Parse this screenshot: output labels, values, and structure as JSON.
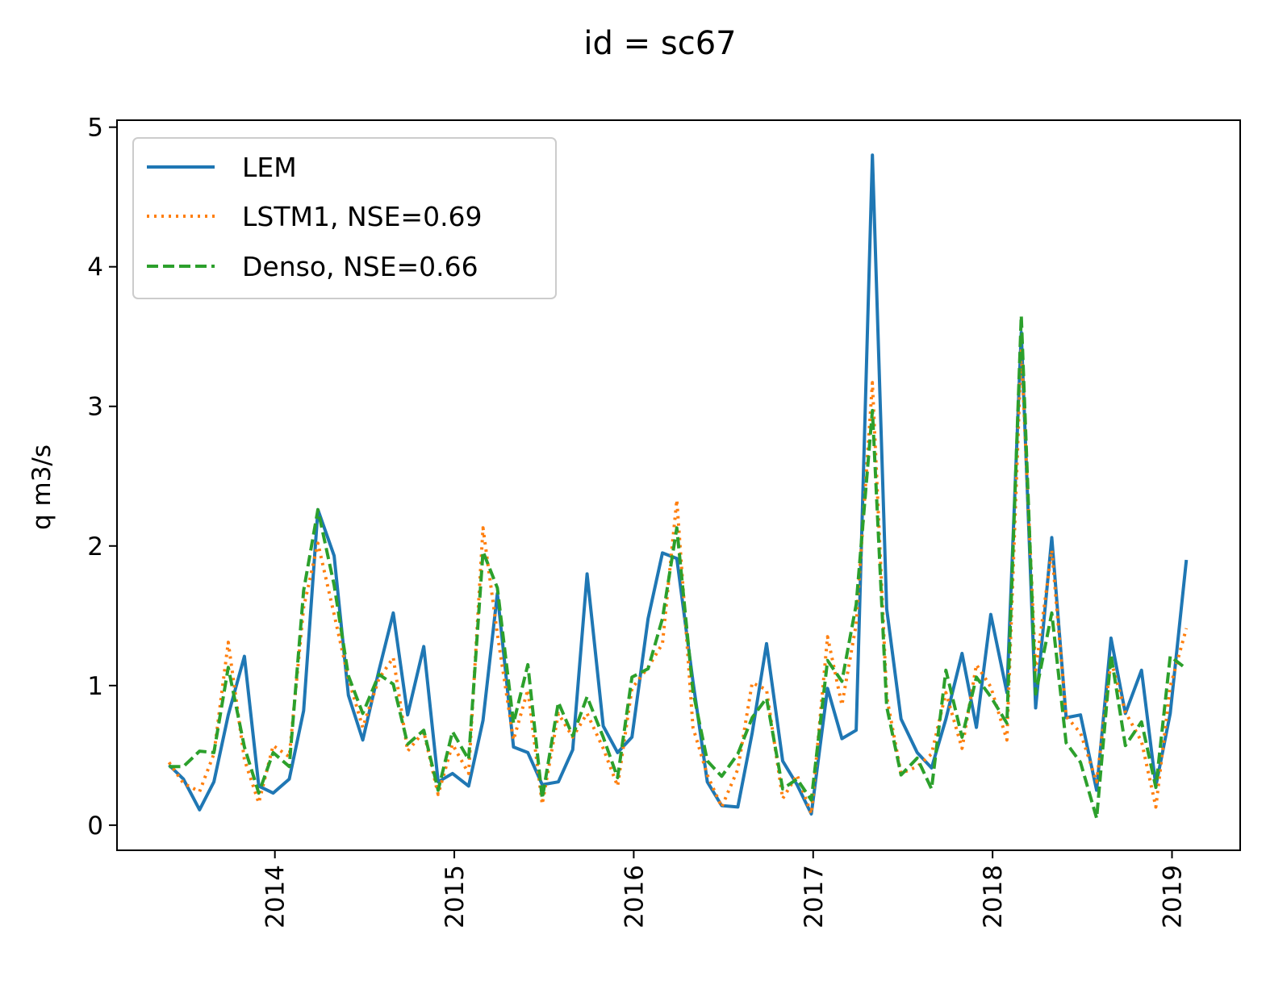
{
  "chart_data": {
    "type": "line",
    "title": "id = sc67",
    "xlabel": "",
    "ylabel": "q m3/s",
    "xlim": [
      2013.12,
      2019.38
    ],
    "ylim": [
      -0.18,
      5.05
    ],
    "x_ticks": [
      {
        "value": 2014,
        "label": "2014"
      },
      {
        "value": 2015,
        "label": "2015"
      },
      {
        "value": 2016,
        "label": "2016"
      },
      {
        "value": 2017,
        "label": "2017"
      },
      {
        "value": 2018,
        "label": "2018"
      },
      {
        "value": 2019,
        "label": "2019"
      }
    ],
    "y_ticks": [
      {
        "value": 0,
        "label": "0"
      },
      {
        "value": 1,
        "label": "1"
      },
      {
        "value": 2,
        "label": "2"
      },
      {
        "value": 3,
        "label": "3"
      },
      {
        "value": 4,
        "label": "4"
      },
      {
        "value": 5,
        "label": "5"
      }
    ],
    "legend_position": "top-left",
    "series": [
      {
        "name": "LEM",
        "color": "#1f77b4",
        "style": "solid",
        "x": [
          2013.41,
          2013.49,
          2013.58,
          2013.66,
          2013.74,
          2013.83,
          2013.91,
          2013.99,
          2014.08,
          2014.16,
          2014.24,
          2014.33,
          2014.41,
          2014.49,
          2014.58,
          2014.66,
          2014.74,
          2014.83,
          2014.91,
          2014.99,
          2015.08,
          2015.16,
          2015.24,
          2015.33,
          2015.41,
          2015.49,
          2015.58,
          2015.66,
          2015.74,
          2015.83,
          2015.91,
          2015.99,
          2016.08,
          2016.16,
          2016.24,
          2016.33,
          2016.41,
          2016.49,
          2016.58,
          2016.66,
          2016.74,
          2016.83,
          2016.91,
          2016.99,
          2017.08,
          2017.16,
          2017.24,
          2017.33,
          2017.41,
          2017.49,
          2017.58,
          2017.66,
          2017.74,
          2017.83,
          2017.91,
          2017.99,
          2018.08,
          2018.16,
          2018.24,
          2018.33,
          2018.41,
          2018.49,
          2018.58,
          2018.66,
          2018.74,
          2018.83,
          2018.91,
          2018.99,
          2019.08
        ],
        "y": [
          0.43,
          0.33,
          0.11,
          0.31,
          0.79,
          1.21,
          0.28,
          0.23,
          0.33,
          0.82,
          2.26,
          1.93,
          0.93,
          0.61,
          1.11,
          1.52,
          0.79,
          1.28,
          0.31,
          0.37,
          0.28,
          0.75,
          1.66,
          0.56,
          0.52,
          0.29,
          0.31,
          0.54,
          1.8,
          0.71,
          0.52,
          0.63,
          1.48,
          1.95,
          1.91,
          1.03,
          0.31,
          0.14,
          0.13,
          0.66,
          1.3,
          0.46,
          0.29,
          0.08,
          0.98,
          0.62,
          0.68,
          4.8,
          1.55,
          0.76,
          0.52,
          0.41,
          0.76,
          1.23,
          0.7,
          1.51,
          0.95,
          3.53,
          0.84,
          2.06,
          0.77,
          0.79,
          0.25,
          1.34,
          0.8,
          1.11,
          0.28,
          0.8,
          1.9
        ]
      },
      {
        "name": "LSTM1, NSE=0.69",
        "color": "#ff7f0e",
        "style": "dotted",
        "x": [
          2013.41,
          2013.49,
          2013.58,
          2013.66,
          2013.74,
          2013.83,
          2013.91,
          2013.99,
          2014.08,
          2014.16,
          2014.24,
          2014.33,
          2014.41,
          2014.49,
          2014.58,
          2014.66,
          2014.74,
          2014.83,
          2014.91,
          2014.99,
          2015.08,
          2015.16,
          2015.24,
          2015.33,
          2015.41,
          2015.49,
          2015.58,
          2015.66,
          2015.74,
          2015.83,
          2015.91,
          2015.99,
          2016.08,
          2016.16,
          2016.24,
          2016.33,
          2016.41,
          2016.49,
          2016.58,
          2016.66,
          2016.74,
          2016.83,
          2016.91,
          2016.99,
          2017.08,
          2017.16,
          2017.24,
          2017.33,
          2017.41,
          2017.49,
          2017.58,
          2017.66,
          2017.74,
          2017.83,
          2017.91,
          2017.99,
          2018.08,
          2018.16,
          2018.24,
          2018.33,
          2018.41,
          2018.49,
          2018.58,
          2018.66,
          2018.74,
          2018.83,
          2018.91,
          2018.99,
          2019.08
        ],
        "y": [
          0.45,
          0.3,
          0.24,
          0.51,
          1.31,
          0.47,
          0.16,
          0.57,
          0.49,
          1.56,
          2.02,
          1.51,
          1.05,
          0.7,
          1.05,
          1.2,
          0.53,
          0.67,
          0.22,
          0.58,
          0.37,
          2.13,
          1.37,
          0.61,
          0.97,
          0.15,
          0.8,
          0.63,
          0.8,
          0.55,
          0.28,
          0.98,
          1.13,
          1.3,
          2.33,
          0.7,
          0.36,
          0.13,
          0.4,
          1.02,
          0.97,
          0.19,
          0.36,
          0.08,
          1.35,
          0.86,
          1.44,
          3.17,
          0.92,
          0.37,
          0.42,
          0.51,
          0.95,
          0.55,
          1.15,
          0.99,
          0.61,
          3.41,
          1.11,
          1.97,
          0.78,
          0.66,
          0.31,
          1.18,
          0.81,
          0.6,
          0.13,
          0.99,
          1.41
        ]
      },
      {
        "name": "Denso, NSE=0.66",
        "color": "#2ca02c",
        "style": "dashed",
        "x": [
          2013.41,
          2013.49,
          2013.58,
          2013.66,
          2013.74,
          2013.83,
          2013.91,
          2013.99,
          2014.08,
          2014.16,
          2014.24,
          2014.33,
          2014.41,
          2014.49,
          2014.58,
          2014.66,
          2014.74,
          2014.83,
          2014.91,
          2014.99,
          2015.08,
          2015.16,
          2015.24,
          2015.33,
          2015.41,
          2015.49,
          2015.58,
          2015.66,
          2015.74,
          2015.83,
          2015.91,
          2015.99,
          2016.08,
          2016.16,
          2016.24,
          2016.33,
          2016.41,
          2016.49,
          2016.58,
          2016.66,
          2016.74,
          2016.83,
          2016.91,
          2016.99,
          2017.08,
          2017.16,
          2017.24,
          2017.33,
          2017.41,
          2017.49,
          2017.58,
          2017.66,
          2017.74,
          2017.83,
          2017.91,
          2017.99,
          2018.08,
          2018.16,
          2018.24,
          2018.33,
          2018.41,
          2018.49,
          2018.58,
          2018.66,
          2018.74,
          2018.83,
          2018.91,
          2018.99,
          2019.08
        ],
        "y": [
          0.42,
          0.42,
          0.53,
          0.52,
          1.13,
          0.56,
          0.23,
          0.52,
          0.42,
          1.68,
          2.26,
          1.72,
          1.07,
          0.8,
          1.08,
          1.01,
          0.58,
          0.68,
          0.25,
          0.67,
          0.47,
          1.96,
          1.7,
          0.73,
          1.15,
          0.19,
          0.88,
          0.64,
          0.92,
          0.63,
          0.34,
          1.06,
          1.12,
          1.48,
          2.13,
          0.96,
          0.46,
          0.35,
          0.51,
          0.77,
          0.91,
          0.26,
          0.33,
          0.18,
          1.18,
          1.03,
          1.58,
          2.97,
          0.85,
          0.36,
          0.48,
          0.26,
          1.11,
          0.63,
          1.06,
          0.92,
          0.73,
          3.65,
          0.94,
          1.52,
          0.59,
          0.45,
          0.05,
          1.22,
          0.57,
          0.74,
          0.27,
          1.21,
          1.12
        ]
      }
    ]
  }
}
